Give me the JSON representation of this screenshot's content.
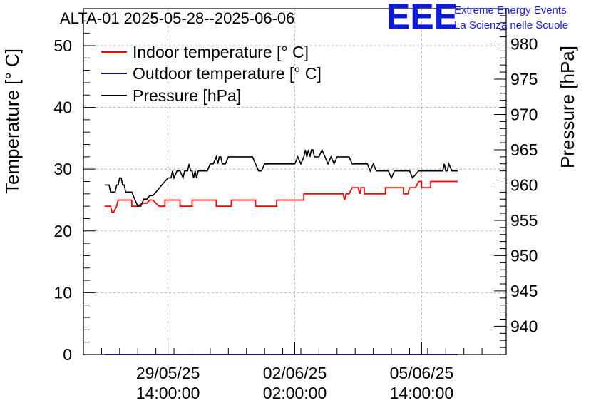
{
  "chart_data": {
    "type": "line",
    "title": "ALTA-01 2025-05-28--2025-06-06",
    "ylabel": "Temperature [° C]",
    "y2label": "Pressure [hPa]",
    "xlabel": "",
    "ylim": [
      0,
      56
    ],
    "y2lim": [
      936,
      985
    ],
    "y_ticks": [
      "0",
      "10",
      "20",
      "30",
      "40",
      "50"
    ],
    "y2_ticks": [
      "940",
      "945",
      "950",
      "955",
      "960",
      "965",
      "970",
      "975",
      "980"
    ],
    "x_ticks": [
      {
        "date": "29/05/25",
        "time": "14:00:00",
        "t": 24
      },
      {
        "date": "02/06/25",
        "time": "02:00:00",
        "t": 108
      },
      {
        "date": "05/06/25",
        "time": "14:00:00",
        "t": 192
      }
    ],
    "xlim_hours": [
      -32,
      248
    ],
    "grid": true,
    "legend_position": "top-left",
    "series": [
      {
        "name": "Indoor temperature [° C]",
        "axis": "left",
        "color": "#ff0000",
        "x_hours": [
          -18,
          -14,
          -13,
          -12,
          -10,
          -9,
          -8,
          0,
          0,
          4,
          7,
          10,
          12,
          14,
          18,
          22,
          22,
          32,
          32,
          40,
          40,
          50,
          51,
          56,
          56,
          66,
          66,
          82,
          82,
          96,
          96,
          114,
          114,
          130,
          131,
          132,
          140,
          141,
          142,
          144,
          144,
          146,
          150,
          151,
          152,
          154,
          154,
          156,
          156,
          168,
          168,
          180,
          180,
          183,
          184,
          186,
          188,
          188,
          190,
          192,
          192,
          198,
          198,
          210,
          210,
          216
        ],
        "values": [
          24,
          24,
          23,
          23,
          24,
          25,
          25,
          25,
          24,
          24,
          24.5,
          24.5,
          25,
          25,
          24,
          24,
          25,
          25,
          24,
          24,
          25,
          25,
          25,
          25,
          24,
          24,
          25,
          25,
          24,
          24,
          25,
          25,
          26,
          26,
          26,
          26,
          26,
          25,
          26,
          26,
          26,
          27,
          27,
          26,
          27,
          27,
          26,
          26,
          26,
          26,
          27,
          27,
          26,
          26,
          27,
          27,
          27,
          27,
          28,
          28,
          27,
          27,
          28,
          28,
          28,
          28
        ]
      },
      {
        "name": "Outdoor temperature [° C]",
        "axis": "left",
        "color": "#0000ff",
        "x_hours": [
          -18,
          216
        ],
        "values": [
          0,
          0
        ]
      },
      {
        "name": "Pressure [hPa]",
        "axis": "right",
        "color": "#000000",
        "x_hours": [
          -18,
          -15,
          -14,
          -11,
          -10,
          -9,
          -8,
          -7,
          -6,
          -5,
          -4,
          -3,
          -2,
          0,
          2,
          4,
          6,
          8,
          10,
          12,
          14,
          16,
          20,
          24,
          26,
          27,
          28,
          30,
          32,
          34,
          35,
          36,
          37,
          38,
          39,
          40,
          41,
          42,
          43,
          44,
          46,
          48,
          50,
          52,
          54,
          56,
          57,
          58,
          59,
          60,
          62,
          64,
          66,
          70,
          72,
          74,
          76,
          80,
          82,
          84,
          86,
          88,
          90,
          92,
          96,
          100,
          104,
          108,
          110,
          112,
          114,
          115,
          116,
          117,
          118,
          119,
          120,
          121,
          122,
          124,
          126,
          128,
          130,
          132,
          134,
          136,
          140,
          144,
          146,
          148,
          150,
          156,
          158,
          160,
          162,
          164,
          166,
          168,
          170,
          172,
          174,
          176,
          180,
          182,
          184,
          186,
          190,
          192,
          196,
          200,
          204,
          206,
          207,
          208,
          209,
          210,
          212,
          216
        ],
        "values": [
          960,
          960,
          959,
          959,
          960,
          960,
          961,
          961,
          960,
          960,
          959,
          959,
          959,
          959,
          958,
          957,
          957,
          958,
          958,
          958.5,
          958.5,
          959,
          960,
          961,
          961,
          962,
          961,
          962,
          962,
          961,
          962,
          962,
          962,
          963,
          962,
          962,
          961,
          962,
          961,
          962,
          962,
          962,
          962,
          963,
          963,
          964,
          963,
          964,
          964,
          963,
          963,
          964,
          964,
          964,
          964,
          964,
          964,
          964,
          963,
          962,
          962,
          963,
          963,
          963,
          963,
          963,
          963,
          963,
          964,
          963,
          964,
          965,
          964,
          965,
          964,
          965,
          965,
          964,
          964,
          964,
          965,
          964,
          963,
          964,
          963,
          964,
          964,
          964,
          963,
          963,
          963,
          963,
          962,
          963,
          962,
          962,
          962,
          962,
          962,
          961,
          962,
          962,
          962,
          962,
          962,
          961,
          962,
          962,
          962,
          962,
          962,
          962,
          963,
          962,
          962,
          963,
          962,
          962
        ]
      }
    ]
  },
  "logo": {
    "mark": "EEE",
    "line1": "Extreme Energy Events",
    "line2": "La Scienza nelle Scuole",
    "color": "#0d1adb"
  }
}
